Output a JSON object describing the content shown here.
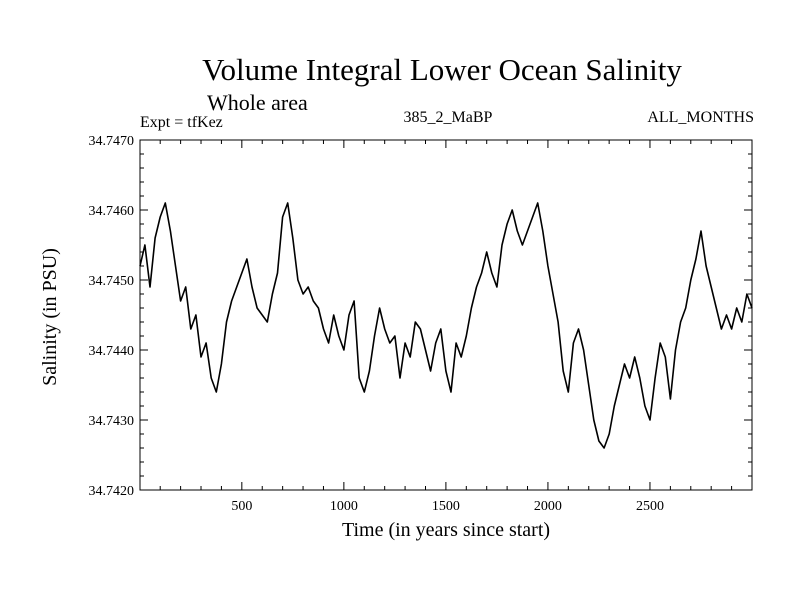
{
  "chart_data": {
    "type": "line",
    "title": "Volume Integral Lower Ocean Salinity",
    "subtitle": "Whole area",
    "experiment": "Expt = tfKez",
    "run": "385_2_MaBP",
    "months": "ALL_MONTHS",
    "xlabel": "Time (in years since start)",
    "ylabel": "Salinity (in PSU)",
    "xlim": [
      1,
      3000
    ],
    "ylim": [
      34.742,
      34.747
    ],
    "xticks": [
      500,
      1000,
      1500,
      2000,
      2500
    ],
    "xtick_labels": [
      "500",
      "1000",
      "1500",
      "2000",
      "2500"
    ],
    "yticks": [
      34.742,
      34.743,
      34.744,
      34.745,
      34.746,
      34.747
    ],
    "ytick_labels": [
      "34.7420",
      "34.7430",
      "34.7440",
      "34.7450",
      "34.7460",
      "34.7470"
    ],
    "grid": false,
    "line_color": "#000000",
    "series": [
      {
        "x": [
          1,
          25,
          50,
          75,
          100,
          125,
          150,
          175,
          200,
          225,
          250,
          275,
          300,
          325,
          350,
          375,
          400,
          425,
          450,
          475,
          500,
          525,
          550,
          575,
          600,
          625,
          650,
          675,
          700,
          725,
          750,
          775,
          800,
          825,
          850,
          875,
          900,
          925,
          950,
          975,
          1000,
          1025,
          1050,
          1075,
          1100,
          1125,
          1150,
          1175,
          1200,
          1225,
          1250,
          1275,
          1300,
          1325,
          1350,
          1375,
          1400,
          1425,
          1450,
          1475,
          1500,
          1525,
          1550,
          1575,
          1600,
          1625,
          1650,
          1675,
          1700,
          1725,
          1750,
          1775,
          1800,
          1825,
          1850,
          1875,
          1900,
          1925,
          1950,
          1975,
          2000,
          2025,
          2050,
          2075,
          2100,
          2125,
          2150,
          2175,
          2200,
          2225,
          2250,
          2275,
          2300,
          2325,
          2350,
          2375,
          2400,
          2425,
          2450,
          2475,
          2500,
          2525,
          2550,
          2575,
          2600,
          2625,
          2650,
          2675,
          2700,
          2725,
          2750,
          2775,
          2800,
          2825,
          2850,
          2875,
          2900,
          2925,
          2950,
          2975,
          3000
        ],
        "values": [
          34.7452,
          34.7455,
          34.7449,
          34.7456,
          34.7459,
          34.7461,
          34.7457,
          34.7452,
          34.7447,
          34.7449,
          34.7443,
          34.7445,
          34.7439,
          34.7441,
          34.7436,
          34.7434,
          34.7438,
          34.7444,
          34.7447,
          34.7449,
          34.7451,
          34.7453,
          34.7449,
          34.7446,
          34.7445,
          34.7444,
          34.7448,
          34.7451,
          34.7459,
          34.7461,
          34.7456,
          34.745,
          34.7448,
          34.7449,
          34.7447,
          34.7446,
          34.7443,
          34.7441,
          34.7445,
          34.7442,
          34.744,
          34.7445,
          34.7447,
          34.7436,
          34.7434,
          34.7437,
          34.7442,
          34.7446,
          34.7443,
          34.7441,
          34.7442,
          34.7436,
          34.7441,
          34.7439,
          34.7444,
          34.7443,
          34.744,
          34.7437,
          34.7441,
          34.7443,
          34.7437,
          34.7434,
          34.7441,
          34.7439,
          34.7442,
          34.7446,
          34.7449,
          34.7451,
          34.7454,
          34.7451,
          34.7449,
          34.7455,
          34.7458,
          34.746,
          34.7457,
          34.7455,
          34.7457,
          34.7459,
          34.7461,
          34.7457,
          34.7452,
          34.7448,
          34.7444,
          34.7437,
          34.7434,
          34.7441,
          34.7443,
          34.744,
          34.7435,
          34.743,
          34.7427,
          34.7426,
          34.7428,
          34.7432,
          34.7435,
          34.7438,
          34.7436,
          34.7439,
          34.7436,
          34.7432,
          34.743,
          34.7436,
          34.7441,
          34.7439,
          34.7433,
          34.744,
          34.7444,
          34.7446,
          34.745,
          34.7453,
          34.7457,
          34.7452,
          34.7449,
          34.7446,
          34.7443,
          34.7445,
          34.7443,
          34.7446,
          34.7444,
          34.7448,
          34.7446
        ]
      }
    ]
  }
}
